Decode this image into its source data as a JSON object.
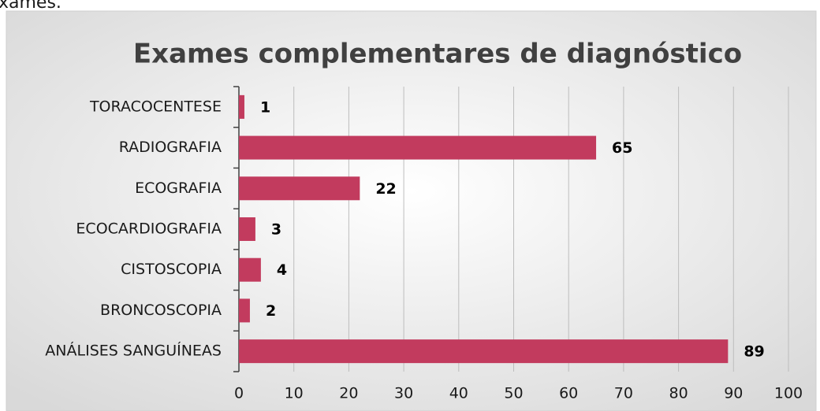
{
  "page_text": "xames.",
  "chart_data": {
    "type": "bar",
    "orientation": "horizontal",
    "title": "Exames complementares de diagnóstico",
    "categories": [
      "TORACOCENTESE",
      "RADIOGRAFIA",
      "ECOGRAFIA",
      "ECOCARDIOGRAFIA",
      "CISTOSCOPIA",
      "BRONCOSCOPIA",
      "ANÁLISES SANGUÍNEAS"
    ],
    "values": [
      1,
      65,
      22,
      3,
      4,
      2,
      89
    ],
    "color": "#c23b5e",
    "xlim": [
      0,
      100
    ],
    "xticks": [
      0,
      10,
      20,
      30,
      40,
      50,
      60,
      70,
      80,
      90,
      100
    ],
    "grid": true
  }
}
